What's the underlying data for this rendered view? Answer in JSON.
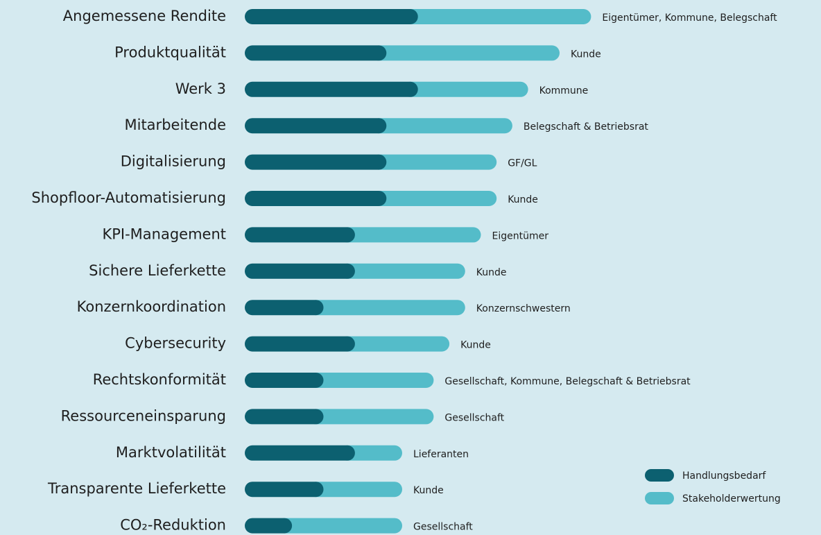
{
  "chart_data": {
    "type": "stacked-barh",
    "categories": [
      "Angemessene Rendite",
      "Produktqualität",
      "Werk 3",
      "Mitarbeitende",
      "Digitalisierung",
      "Shopfloor-Automatisierung",
      "KPI-Management",
      "Sichere Lieferkette",
      "Konzernkoordination",
      "Cybersecurity",
      "Rechtskonformität",
      "Ressourceneinsparung",
      "Marktvolatilität",
      "Transparente Lieferkette",
      "CO₂-Reduktion"
    ],
    "series": [
      {
        "name": "Handlungsbedarf",
        "color": "#0c6070",
        "values": [
          11,
          9,
          11,
          9,
          9,
          9,
          7,
          7,
          5,
          7,
          5,
          5,
          7,
          5,
          3
        ]
      },
      {
        "name": "Stakeholderwertung",
        "color": "#54bcc9",
        "values": [
          11,
          11,
          7,
          8,
          7,
          7,
          8,
          7,
          9,
          6,
          7,
          7,
          3,
          5,
          7
        ]
      }
    ],
    "annotations": [
      "Eigentümer, Kommune, Belegschaft",
      "Kunde",
      "Kommune",
      "Belegschaft & Betriebsrat",
      "GF/GL",
      "Kunde",
      "Eigentümer",
      "Kunde",
      "Konzernschwestern",
      "Kunde",
      "Gesellschaft, Kommune, Belegschaft & Betriebsrat",
      "Gesellschaft",
      "Lieferanten",
      "Kunde",
      "Gesellschaft"
    ],
    "legend": "bottom-right"
  }
}
